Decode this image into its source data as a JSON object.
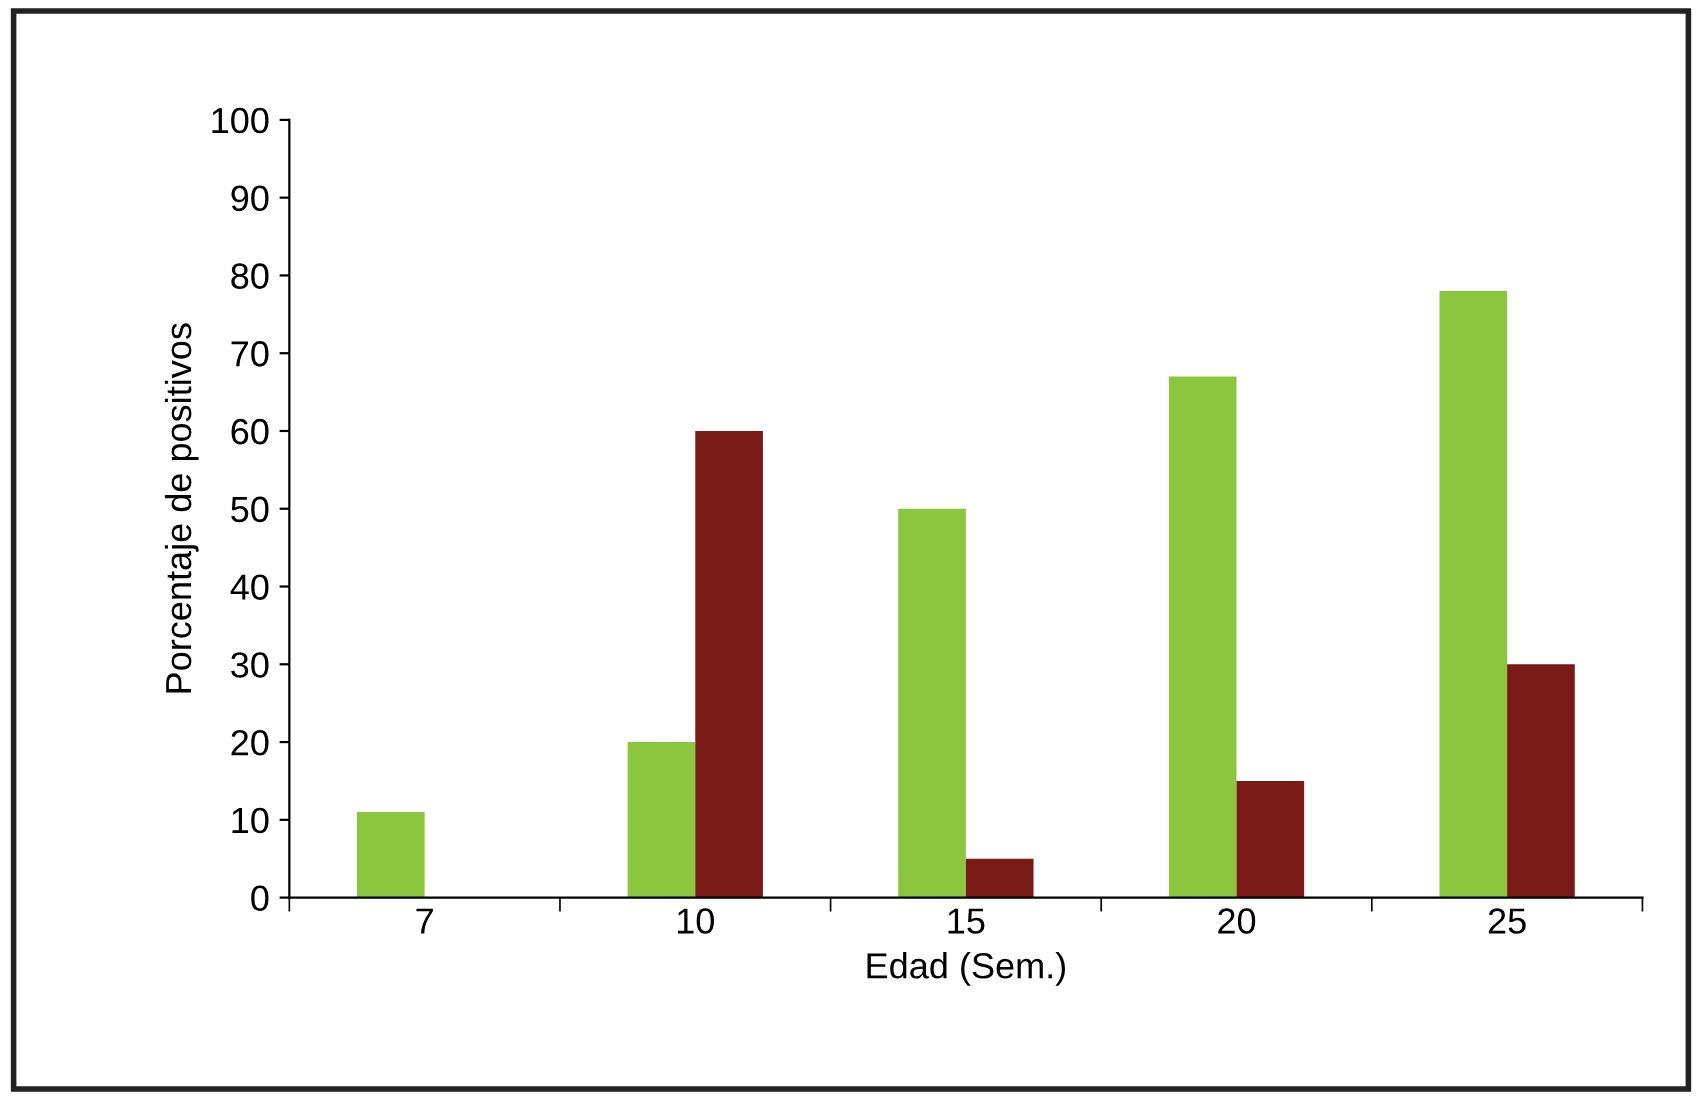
{
  "chart_data": {
    "type": "bar",
    "xlabel": "Edad (Sem.)",
    "ylabel": "Porcentaje de positivos",
    "categories": [
      "7",
      "10",
      "15",
      "20",
      "25"
    ],
    "series": [
      {
        "color": "#8cc63e",
        "values": [
          11,
          20,
          50,
          67,
          78
        ]
      },
      {
        "color": "#7a1a16",
        "values": [
          null,
          60,
          5,
          15,
          30
        ]
      }
    ],
    "ylim": [
      0,
      100
    ],
    "yticks": [
      0,
      10,
      20,
      30,
      40,
      50,
      60,
      70,
      80,
      90,
      100
    ],
    "grid": false
  }
}
